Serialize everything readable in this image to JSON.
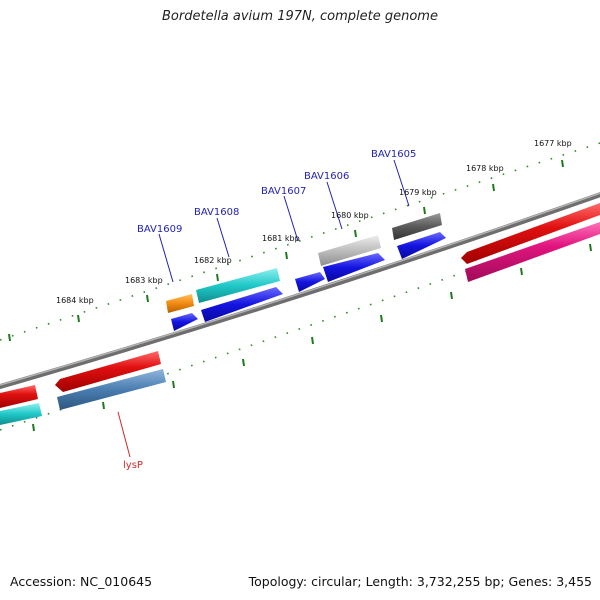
{
  "title": "Bordetella avium 197N, complete genome",
  "footer": {
    "accession": "Accession: NC_010645",
    "summary": "Topology: circular; Length: 3,732,255 bp; Genes: 3,455"
  },
  "ticks": [
    {
      "label": "1677 kbp"
    },
    {
      "label": "1678 kbp"
    },
    {
      "label": "1679 kbp"
    },
    {
      "label": "1680 kbp"
    },
    {
      "label": "1681 kbp"
    },
    {
      "label": "1682 kbp"
    },
    {
      "label": "1683 kbp"
    },
    {
      "label": "1684 kbp"
    }
  ],
  "gene_labels": [
    {
      "text": "BAV1605"
    },
    {
      "text": "BAV1606"
    },
    {
      "text": "BAV1607"
    },
    {
      "text": "BAV1608"
    },
    {
      "text": "BAV1609"
    },
    {
      "text": "lysP"
    }
  ],
  "colors": {
    "backbone": "#8a8a8a",
    "dots": "#2e8b2e",
    "red": "#e01010",
    "magenta": "#e0157e",
    "cyan": "#20c8c8",
    "blue": "#1414e0",
    "orange": "#f08a10",
    "gray_light": "#bdbdbd",
    "gray_dark": "#5a5a5a",
    "steel_blue": "#4a7db0"
  }
}
